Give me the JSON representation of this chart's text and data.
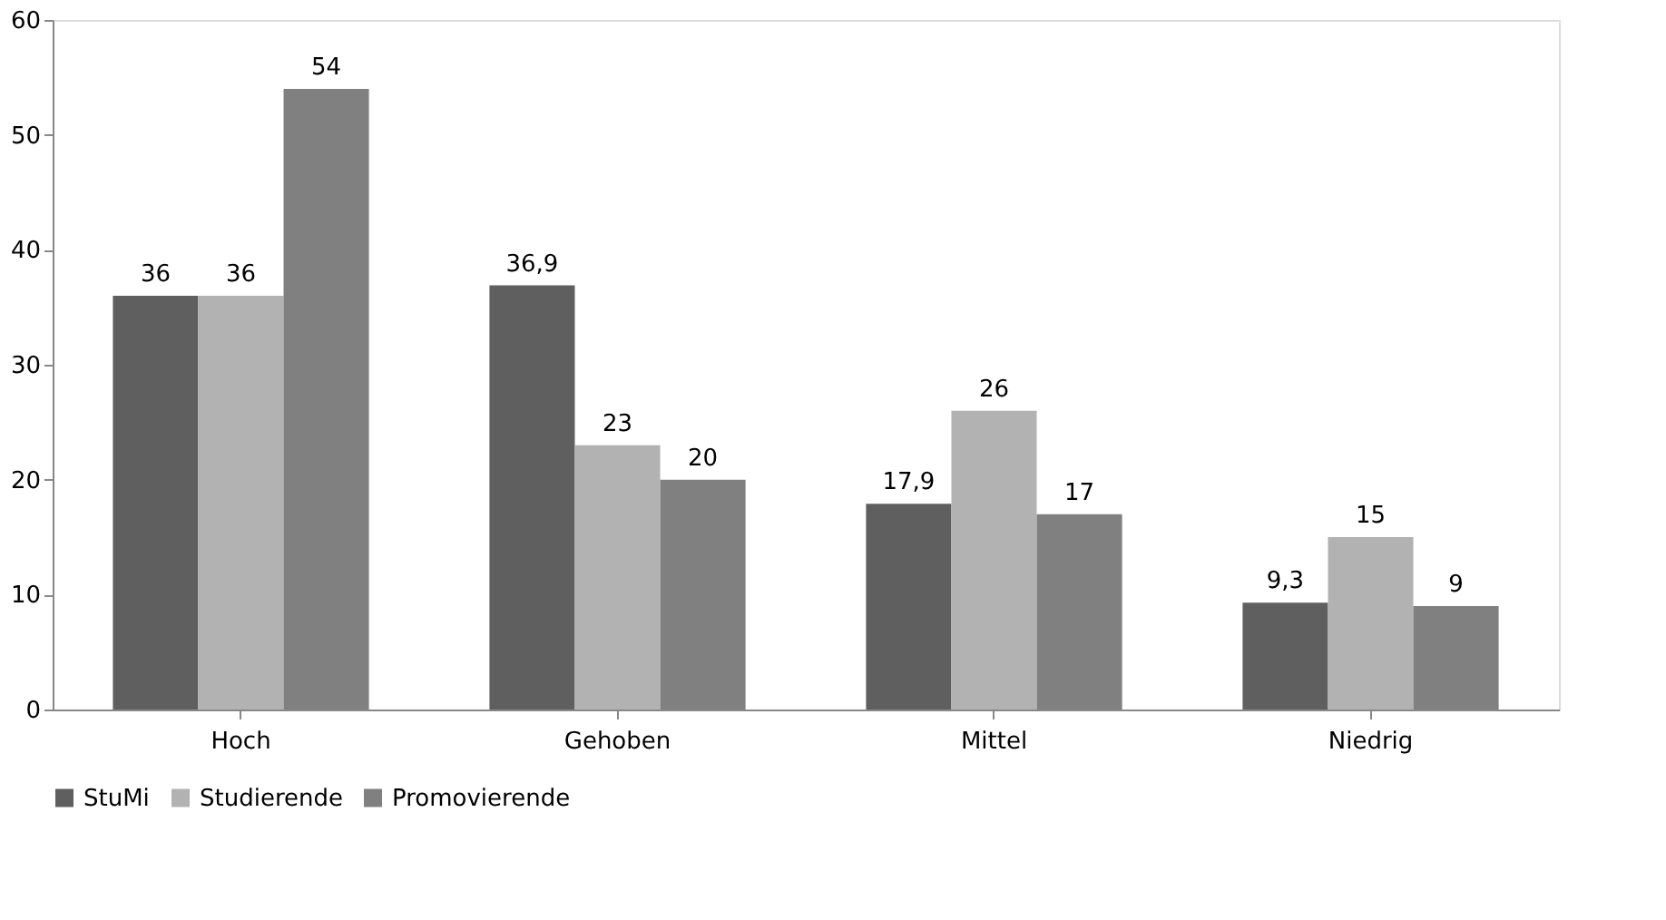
{
  "chart_data": {
    "type": "bar",
    "categories": [
      "Hoch",
      "Gehoben",
      "Mittel",
      "Niedrig"
    ],
    "series": [
      {
        "name": "StuMi",
        "color": "#5f5f5f",
        "values": [
          36,
          36.9,
          17.9,
          9.3
        ],
        "value_labels": [
          "36",
          "36,9",
          "17,9",
          "9,3"
        ]
      },
      {
        "name": "Studierende",
        "color": "#b2b2b2",
        "values": [
          36,
          23,
          26,
          15
        ],
        "value_labels": [
          "36",
          "23",
          "26",
          "15"
        ]
      },
      {
        "name": "Promovierende",
        "color": "#808080",
        "values": [
          54,
          20,
          17,
          9
        ],
        "value_labels": [
          "54",
          "20",
          "17",
          "9"
        ]
      }
    ],
    "ylim": [
      0,
      60
    ],
    "yticks": [
      0,
      10,
      20,
      30,
      40,
      50,
      60
    ],
    "grid": false,
    "legend": "bottom"
  }
}
